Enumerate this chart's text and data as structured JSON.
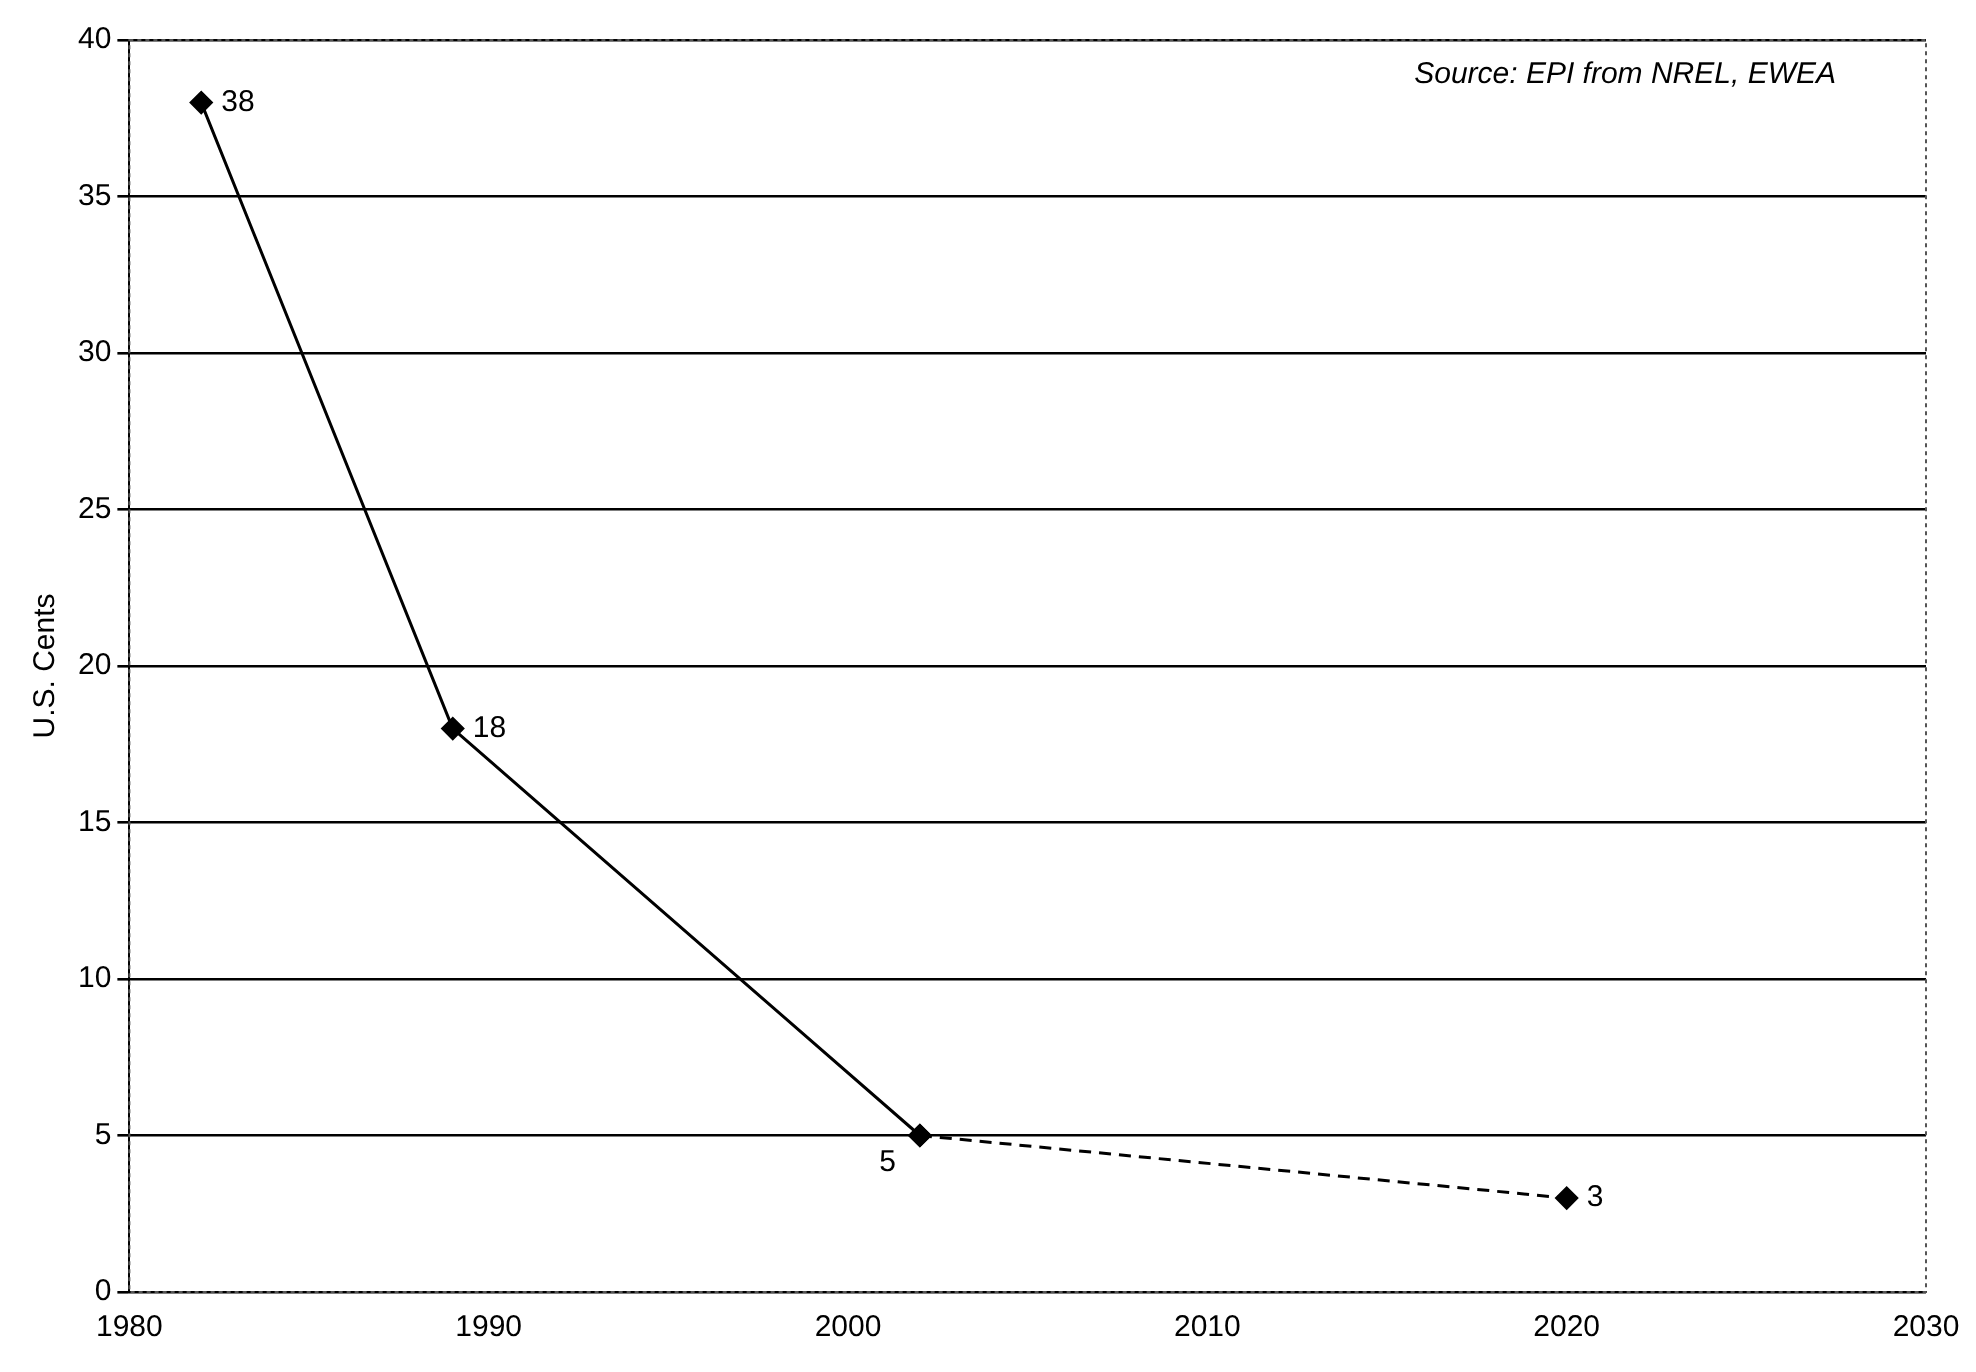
{
  "chart_data": {
    "type": "line",
    "ylabel": "U.S. Cents",
    "annotations": [
      "Source: EPI from NREL, EWEA"
    ],
    "xlim": [
      1980,
      2030
    ],
    "xticks": [
      1980,
      1990,
      2000,
      2010,
      2020,
      2030
    ],
    "ylim": [
      0,
      40
    ],
    "yticks": [
      0,
      5,
      10,
      15,
      20,
      25,
      30,
      35,
      40
    ],
    "grid": "y",
    "legend": false,
    "marker": "diamond",
    "series": [
      {
        "color": "#000000",
        "line_style": "solid",
        "x": [
          1982,
          1989,
          2002
        ],
        "values": [
          38,
          18,
          5
        ],
        "value_labels": [
          "38",
          "18",
          "5"
        ]
      },
      {
        "color": "#000000",
        "line_style": "dashed",
        "x": [
          2002,
          2020
        ],
        "values": [
          5,
          3
        ],
        "value_labels": [
          null,
          "3"
        ]
      }
    ]
  }
}
